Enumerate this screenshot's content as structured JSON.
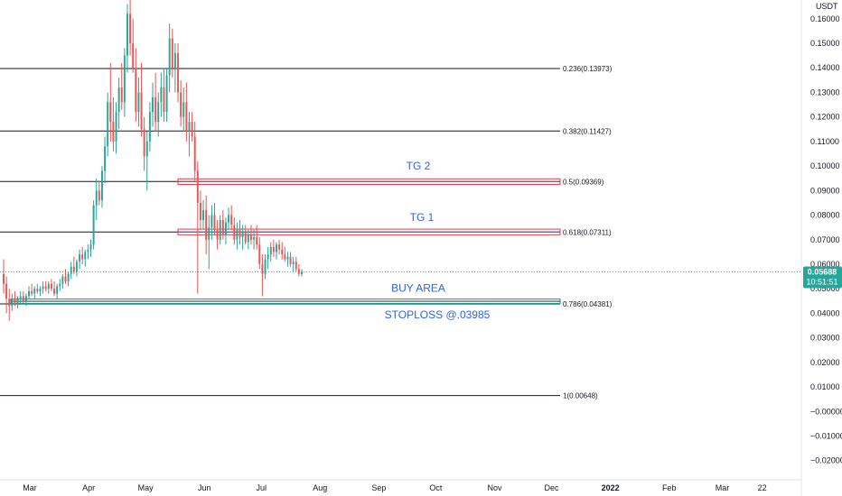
{
  "chart_data": {
    "type": "candlestick",
    "currency": "USDT",
    "y_range": [
      -0.025,
      0.165
    ],
    "y_ticks": [
      "0.16000",
      "0.15000",
      "0.14000",
      "0.13000",
      "0.12000",
      "0.11000",
      "0.10000",
      "0.09000",
      "0.08000",
      "0.07000",
      "0.06000",
      "0.05000",
      "0.04000",
      "0.03000",
      "0.02000",
      "0.01000",
      "−0.00000",
      "−0.01000",
      "−0.02000"
    ],
    "y_tick_values": [
      0.16,
      0.15,
      0.14,
      0.13,
      0.12,
      0.11,
      0.1,
      0.09,
      0.08,
      0.07,
      0.06,
      0.05,
      0.04,
      0.03,
      0.02,
      0.01,
      0.0,
      -0.01,
      -0.02
    ],
    "x_range": [
      -10,
      1200
    ],
    "x_ticks": [
      {
        "label": "Mar",
        "value": 36
      },
      {
        "label": "Apr",
        "value": 67
      },
      {
        "label": "May",
        "value": 97
      },
      {
        "label": "Jun",
        "value": 128
      },
      {
        "label": "Jul",
        "value": 158
      },
      {
        "label": "Aug",
        "value": 189
      },
      {
        "label": "Sep",
        "value": 220
      },
      {
        "label": "Oct",
        "value": 250
      },
      {
        "label": "Nov",
        "value": 281
      },
      {
        "label": "Dec",
        "value": 311
      },
      {
        "label": "2022",
        "value": 342
      },
      {
        "label": "Feb",
        "value": 373
      },
      {
        "label": "Mar",
        "value": 401
      },
      {
        "label": "22",
        "value": 422
      }
    ],
    "last_price": {
      "value": 0.05688,
      "label": "0.05688",
      "countdown": "10:51:51"
    },
    "fib_levels": [
      {
        "ratio": "0.236",
        "value": 0.13973,
        "label": "0.236(0.13973)"
      },
      {
        "ratio": "0.382",
        "value": 0.11427,
        "label": "0.382(0.11427)"
      },
      {
        "ratio": "0.5",
        "value": 0.09369,
        "label": "0.5(0.09369)"
      },
      {
        "ratio": "0.618",
        "value": 0.07311,
        "label": "0.618(0.07311)"
      },
      {
        "ratio": "0.786",
        "value": 0.04381,
        "label": "0.786(0.04381)"
      },
      {
        "ratio": "1",
        "value": 0.00648,
        "label": "1(0.00648)"
      }
    ],
    "zones": [
      {
        "name": "TG 2",
        "low": 0.0925,
        "high": 0.0948,
        "color": "#f23645"
      },
      {
        "name": "TG 1",
        "low": 0.072,
        "high": 0.0743,
        "color": "#f23645"
      },
      {
        "name": "BUY AREA",
        "low": 0.044,
        "high": 0.0458,
        "color": "#089981"
      }
    ],
    "annotations": [
      "TG 2",
      "TG 1",
      "BUY AREA",
      "STOPLOSS @.03985"
    ],
    "candles": [
      [
        0.056,
        0.062,
        0.048,
        0.052
      ],
      [
        0.052,
        0.055,
        0.04,
        0.046
      ],
      [
        0.046,
        0.05,
        0.037,
        0.043
      ],
      [
        0.043,
        0.048,
        0.041,
        0.046
      ],
      [
        0.046,
        0.049,
        0.043,
        0.044
      ],
      [
        0.044,
        0.047,
        0.042,
        0.046
      ],
      [
        0.046,
        0.049,
        0.044,
        0.047
      ],
      [
        0.047,
        0.049,
        0.044,
        0.045
      ],
      [
        0.045,
        0.048,
        0.043,
        0.047
      ],
      [
        0.047,
        0.051,
        0.046,
        0.049
      ],
      [
        0.049,
        0.052,
        0.047,
        0.048
      ],
      [
        0.048,
        0.051,
        0.046,
        0.05
      ],
      [
        0.05,
        0.052,
        0.048,
        0.049
      ],
      [
        0.049,
        0.051,
        0.047,
        0.05
      ],
      [
        0.05,
        0.053,
        0.048,
        0.051
      ],
      [
        0.051,
        0.053,
        0.049,
        0.05
      ],
      [
        0.05,
        0.053,
        0.048,
        0.052
      ],
      [
        0.052,
        0.054,
        0.049,
        0.05
      ],
      [
        0.05,
        0.053,
        0.047,
        0.048
      ],
      [
        0.048,
        0.052,
        0.046,
        0.051
      ],
      [
        0.051,
        0.054,
        0.049,
        0.052
      ],
      [
        0.052,
        0.056,
        0.05,
        0.055
      ],
      [
        0.055,
        0.058,
        0.052,
        0.053
      ],
      [
        0.053,
        0.057,
        0.051,
        0.056
      ],
      [
        0.056,
        0.061,
        0.054,
        0.059
      ],
      [
        0.059,
        0.063,
        0.056,
        0.057
      ],
      [
        0.057,
        0.062,
        0.055,
        0.061
      ],
      [
        0.061,
        0.066,
        0.058,
        0.064
      ],
      [
        0.064,
        0.067,
        0.06,
        0.062
      ],
      [
        0.062,
        0.066,
        0.059,
        0.065
      ],
      [
        0.065,
        0.068,
        0.062,
        0.066
      ],
      [
        0.066,
        0.07,
        0.063,
        0.068
      ],
      [
        0.068,
        0.086,
        0.066,
        0.084
      ],
      [
        0.084,
        0.095,
        0.078,
        0.09
      ],
      [
        0.09,
        0.094,
        0.084,
        0.086
      ],
      [
        0.086,
        0.1,
        0.083,
        0.098
      ],
      [
        0.098,
        0.112,
        0.093,
        0.108
      ],
      [
        0.108,
        0.13,
        0.104,
        0.126
      ],
      [
        0.126,
        0.142,
        0.11,
        0.118
      ],
      [
        0.118,
        0.128,
        0.106,
        0.11
      ],
      [
        0.11,
        0.126,
        0.105,
        0.122
      ],
      [
        0.122,
        0.136,
        0.115,
        0.132
      ],
      [
        0.132,
        0.142,
        0.123,
        0.126
      ],
      [
        0.126,
        0.148,
        0.12,
        0.145
      ],
      [
        0.145,
        0.166,
        0.138,
        0.162
      ],
      [
        0.162,
        0.168,
        0.145,
        0.15
      ],
      [
        0.15,
        0.16,
        0.138,
        0.14
      ],
      [
        0.14,
        0.148,
        0.118,
        0.122
      ],
      [
        0.122,
        0.136,
        0.116,
        0.13
      ],
      [
        0.13,
        0.142,
        0.112,
        0.115
      ],
      [
        0.115,
        0.12,
        0.098,
        0.104
      ],
      [
        0.104,
        0.114,
        0.09,
        0.11
      ],
      [
        0.11,
        0.126,
        0.106,
        0.122
      ],
      [
        0.122,
        0.134,
        0.116,
        0.128
      ],
      [
        0.128,
        0.138,
        0.114,
        0.118
      ],
      [
        0.118,
        0.13,
        0.112,
        0.126
      ],
      [
        0.126,
        0.138,
        0.12,
        0.132
      ],
      [
        0.132,
        0.14,
        0.118,
        0.122
      ],
      [
        0.122,
        0.14,
        0.118,
        0.137
      ],
      [
        0.137,
        0.158,
        0.13,
        0.152
      ],
      [
        0.152,
        0.156,
        0.136,
        0.14
      ],
      [
        0.14,
        0.15,
        0.13,
        0.146
      ],
      [
        0.146,
        0.15,
        0.126,
        0.13
      ],
      [
        0.13,
        0.135,
        0.116,
        0.12
      ],
      [
        0.12,
        0.132,
        0.114,
        0.126
      ],
      [
        0.126,
        0.134,
        0.11,
        0.114
      ],
      [
        0.114,
        0.122,
        0.104,
        0.118
      ],
      [
        0.118,
        0.122,
        0.11,
        0.112
      ],
      [
        0.112,
        0.118,
        0.094,
        0.098
      ],
      [
        0.098,
        0.102,
        0.048,
        0.085
      ],
      [
        0.085,
        0.09,
        0.074,
        0.078
      ],
      [
        0.078,
        0.086,
        0.074,
        0.082
      ],
      [
        0.082,
        0.088,
        0.064,
        0.07
      ],
      [
        0.07,
        0.08,
        0.058,
        0.075
      ],
      [
        0.075,
        0.084,
        0.07,
        0.08
      ],
      [
        0.08,
        0.085,
        0.072,
        0.074
      ],
      [
        0.074,
        0.078,
        0.066,
        0.07
      ],
      [
        0.07,
        0.08,
        0.068,
        0.078
      ],
      [
        0.078,
        0.082,
        0.07,
        0.072
      ],
      [
        0.072,
        0.079,
        0.068,
        0.077
      ],
      [
        0.077,
        0.083,
        0.074,
        0.08
      ],
      [
        0.08,
        0.084,
        0.074,
        0.076
      ],
      [
        0.076,
        0.079,
        0.068,
        0.07
      ],
      [
        0.07,
        0.077,
        0.066,
        0.074
      ],
      [
        0.074,
        0.078,
        0.068,
        0.071
      ],
      [
        0.071,
        0.076,
        0.066,
        0.073
      ],
      [
        0.073,
        0.076,
        0.068,
        0.069
      ],
      [
        0.069,
        0.074,
        0.066,
        0.072
      ],
      [
        0.072,
        0.076,
        0.068,
        0.07
      ],
      [
        0.07,
        0.074,
        0.066,
        0.071
      ],
      [
        0.071,
        0.076,
        0.066,
        0.068
      ],
      [
        0.068,
        0.071,
        0.058,
        0.06
      ],
      [
        0.06,
        0.064,
        0.047,
        0.056
      ],
      [
        0.056,
        0.064,
        0.054,
        0.062
      ],
      [
        0.062,
        0.067,
        0.058,
        0.064
      ],
      [
        0.064,
        0.069,
        0.061,
        0.067
      ],
      [
        0.067,
        0.07,
        0.063,
        0.065
      ],
      [
        0.065,
        0.069,
        0.062,
        0.068
      ],
      [
        0.068,
        0.07,
        0.064,
        0.066
      ],
      [
        0.066,
        0.069,
        0.062,
        0.064
      ],
      [
        0.064,
        0.067,
        0.061,
        0.062
      ],
      [
        0.062,
        0.065,
        0.059,
        0.063
      ],
      [
        0.063,
        0.065,
        0.059,
        0.06
      ],
      [
        0.06,
        0.063,
        0.057,
        0.061
      ],
      [
        0.061,
        0.063,
        0.057,
        0.058
      ],
      [
        0.058,
        0.06,
        0.055,
        0.056
      ],
      [
        0.056,
        0.058,
        0.055,
        0.057
      ]
    ]
  },
  "colors": {
    "up": "#26a69a",
    "down": "#ef5350",
    "fib_line": "#131722",
    "annotation": "#2962ff",
    "price_tag": "#26a69a",
    "axis_text": "#131722",
    "grid": "#e0e3eb"
  }
}
